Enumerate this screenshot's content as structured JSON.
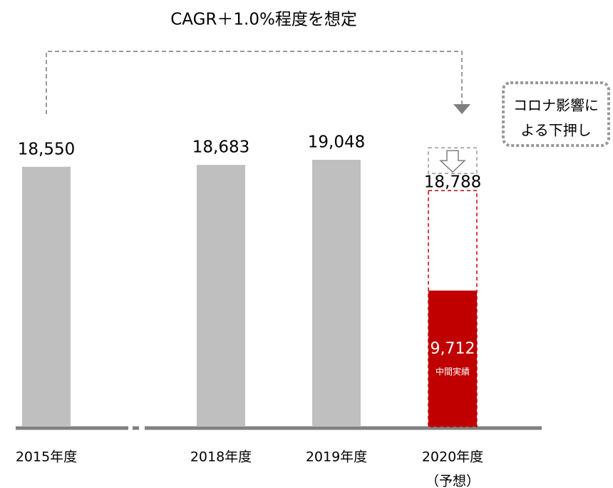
{
  "chart_data": {
    "type": "bar",
    "title": "CAGR＋1.0%程度を想定",
    "categories": [
      "2015年度",
      "2018年度",
      "2019年度",
      "2020年度"
    ],
    "forecast_note": "（予想）",
    "values": [
      18550,
      18683,
      19048,
      18788
    ],
    "value_labels": [
      "18,550",
      "18,683",
      "19,048",
      "18,788"
    ],
    "color": "#bfbfbf",
    "forecast_color": "#c00000",
    "interim": {
      "label": "中間実績",
      "value": 9712,
      "value_label": "9,712",
      "color": "#c00000"
    },
    "annotation": [
      "コロナ影響に",
      "よる下押し"
    ]
  }
}
